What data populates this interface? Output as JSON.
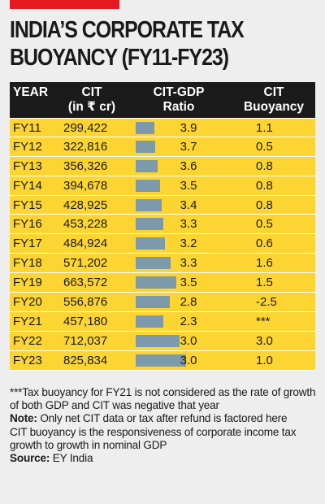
{
  "header": {
    "title_line1": "INDIA’S CORPORATE TAX",
    "title_line2": "BUOYANCY (FY11-FY23)",
    "accent_color": "#e51a21"
  },
  "columns": {
    "year": "YEAR",
    "cit_line1": "CIT",
    "cit_line2": "(in ₹ cr)",
    "ratio_line1": "CIT-GDP",
    "ratio_line2": "Ratio",
    "buoy_line1": "CIT",
    "buoy_line2": "Buoyancy"
  },
  "chart_data": {
    "type": "table",
    "bar_color": "#7c9aab",
    "row_color": "#fcd533",
    "rows": [
      {
        "year": "FY11",
        "cit": "299,422",
        "cit_value": 299422,
        "ratio": "3.9",
        "buoyancy": "1.1"
      },
      {
        "year": "FY12",
        "cit": "322,816",
        "cit_value": 322816,
        "ratio": "3.7",
        "buoyancy": "0.5"
      },
      {
        "year": "FY13",
        "cit": "356,326",
        "cit_value": 356326,
        "ratio": "3.6",
        "buoyancy": "0.8"
      },
      {
        "year": "FY14",
        "cit": "394,678",
        "cit_value": 394678,
        "ratio": "3.5",
        "buoyancy": "0.8"
      },
      {
        "year": "FY15",
        "cit": "428,925",
        "cit_value": 428925,
        "ratio": "3.4",
        "buoyancy": "0.8"
      },
      {
        "year": "FY16",
        "cit": "453,228",
        "cit_value": 453228,
        "ratio": "3.3",
        "buoyancy": "0.5"
      },
      {
        "year": "FY17",
        "cit": "484,924",
        "cit_value": 484924,
        "ratio": "3.2",
        "buoyancy": "0.6"
      },
      {
        "year": "FY18",
        "cit": "571,202",
        "cit_value": 571202,
        "ratio": "3.3",
        "buoyancy": "1.6"
      },
      {
        "year": "FY19",
        "cit": "663,572",
        "cit_value": 663572,
        "ratio": "3.5",
        "buoyancy": "1.5"
      },
      {
        "year": "FY20",
        "cit": "556,876",
        "cit_value": 556876,
        "ratio": "2.8",
        "buoyancy": "-2.5"
      },
      {
        "year": "FY21",
        "cit": "457,180",
        "cit_value": 457180,
        "ratio": "2.3",
        "buoyancy": "***"
      },
      {
        "year": "FY22",
        "cit": "712,037",
        "cit_value": 712037,
        "ratio": "3.0",
        "buoyancy": "3.0"
      },
      {
        "year": "FY23",
        "cit": "825,834",
        "cit_value": 825834,
        "ratio": "3.0",
        "buoyancy": "1.0"
      }
    ]
  },
  "notes": {
    "footnote": "***Tax buoyancy for FY21 is not considered as the rate of growth of both GDP and CIT was negative that year",
    "note_label": "Note:",
    "note_text": " Only net CIT data or tax after refund is factored here",
    "definition": "CIT buoyancy is the responsiveness of corporate income tax growth to growth in nominal GDP",
    "source_label": "Source:",
    "source_text": " EY India"
  }
}
